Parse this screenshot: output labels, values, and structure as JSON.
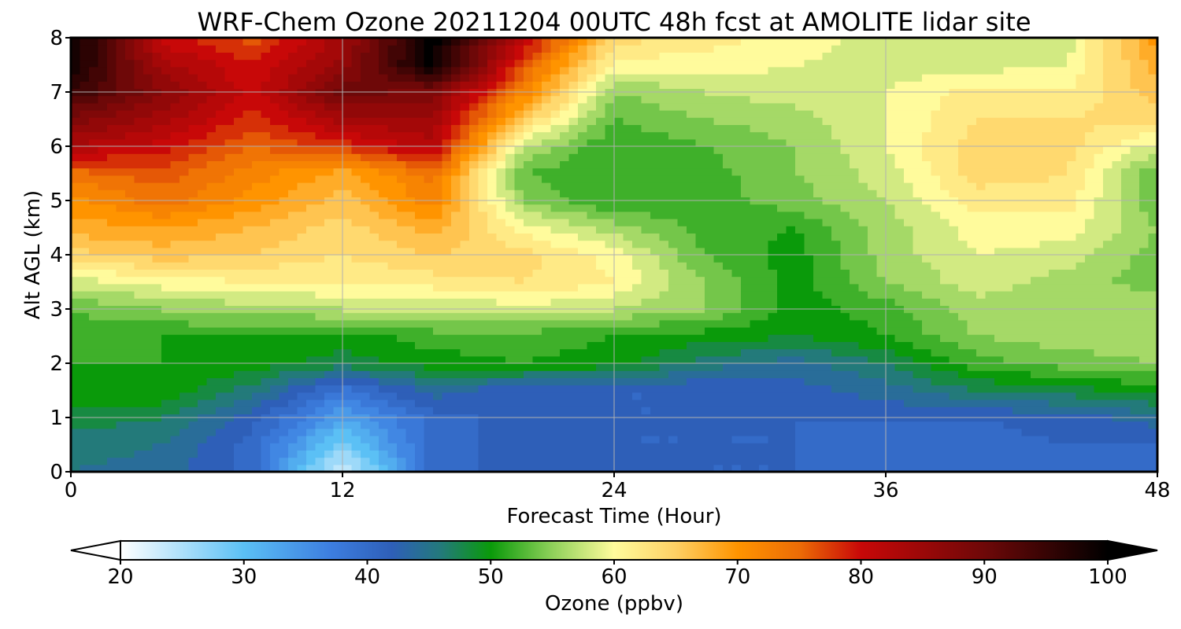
{
  "chart_data": {
    "type": "heatmap",
    "title": "WRF-Chem Ozone  20211204 00UTC 48h fcst at AMOLITE lidar site",
    "xlabel": "Forecast Time (Hour)",
    "ylabel": "Alt AGL (km)",
    "xlim": [
      0,
      48
    ],
    "ylim": [
      0,
      8
    ],
    "xticks": [
      0,
      12,
      24,
      36,
      48
    ],
    "yticks": [
      0,
      1,
      2,
      3,
      4,
      5,
      6,
      7,
      8
    ],
    "grid": true,
    "colorbar": {
      "label": "Ozone  (ppbv)",
      "min": 20,
      "max": 100,
      "ticks": [
        20,
        30,
        40,
        50,
        60,
        70,
        80,
        90,
        100
      ],
      "extend": "both",
      "stops": [
        {
          "value": 20,
          "color": "#ffffff"
        },
        {
          "value": 30,
          "color": "#5bc0f5"
        },
        {
          "value": 37,
          "color": "#3d7ee0"
        },
        {
          "value": 42,
          "color": "#2e5fb8"
        },
        {
          "value": 46,
          "color": "#237a7a"
        },
        {
          "value": 50,
          "color": "#0a9a0a"
        },
        {
          "value": 55,
          "color": "#8fd15a"
        },
        {
          "value": 60,
          "color": "#fffb9c"
        },
        {
          "value": 65,
          "color": "#ffd064"
        },
        {
          "value": 70,
          "color": "#ff9400"
        },
        {
          "value": 75,
          "color": "#ec6c06"
        },
        {
          "value": 80,
          "color": "#c80808"
        },
        {
          "value": 90,
          "color": "#6e0808"
        },
        {
          "value": 100,
          "color": "#000000"
        }
      ]
    },
    "x": [
      0,
      4,
      8,
      12,
      16,
      20,
      24,
      28,
      32,
      36,
      40,
      44,
      48
    ],
    "y": [
      0,
      0.5,
      1,
      1.5,
      2,
      2.5,
      3,
      3.5,
      4,
      4.5,
      5,
      5.5,
      6,
      6.5,
      7,
      7.5,
      8
    ],
    "z": [
      [
        45,
        44,
        40,
        22,
        40,
        42,
        42,
        41,
        41,
        40,
        39,
        40,
        40
      ],
      [
        46,
        45,
        40,
        28,
        40,
        42,
        41,
        41,
        41,
        40,
        40,
        41,
        41
      ],
      [
        48,
        47,
        42,
        33,
        40,
        42,
        41,
        41,
        41,
        41,
        41,
        42,
        44
      ],
      [
        50,
        51,
        46,
        38,
        44,
        41,
        41,
        41,
        42,
        44,
        47,
        48,
        50
      ],
      [
        51,
        51,
        50,
        48,
        50,
        51,
        50,
        46,
        44,
        47,
        52,
        54,
        55
      ],
      [
        52,
        51,
        51,
        50,
        52,
        52,
        51,
        50,
        49,
        51,
        55,
        56,
        56
      ],
      [
        53,
        55,
        56,
        57,
        57,
        58,
        57,
        55,
        50,
        52,
        56,
        57,
        56
      ],
      [
        58,
        60,
        61,
        61,
        62,
        63,
        61,
        55,
        50,
        55,
        58,
        56,
        54
      ],
      [
        64,
        66,
        65,
        63,
        65,
        64,
        60,
        53,
        50,
        56,
        59,
        58,
        54
      ],
      [
        68,
        69,
        67,
        64,
        68,
        60,
        56,
        52,
        51,
        56,
        60,
        60,
        55
      ],
      [
        70,
        74,
        70,
        66,
        72,
        55,
        51,
        52,
        54,
        57,
        62,
        62,
        53
      ],
      [
        74,
        76,
        72,
        68,
        74,
        53,
        51,
        52,
        55,
        58,
        64,
        63,
        53
      ],
      [
        83,
        80,
        75,
        78,
        82,
        57,
        51,
        53,
        55,
        59,
        64,
        64,
        58
      ],
      [
        88,
        84,
        78,
        84,
        85,
        65,
        53,
        55,
        56,
        59,
        63,
        63,
        64
      ],
      [
        95,
        87,
        80,
        90,
        88,
        72,
        55,
        57,
        58,
        59,
        62,
        61,
        66
      ],
      [
        99,
        84,
        79,
        86,
        100,
        76,
        60,
        60,
        59,
        58,
        58,
        59,
        68
      ],
      [
        100,
        80,
        76,
        84,
        100,
        82,
        64,
        62,
        60,
        58,
        57,
        58,
        70
      ]
    ]
  }
}
